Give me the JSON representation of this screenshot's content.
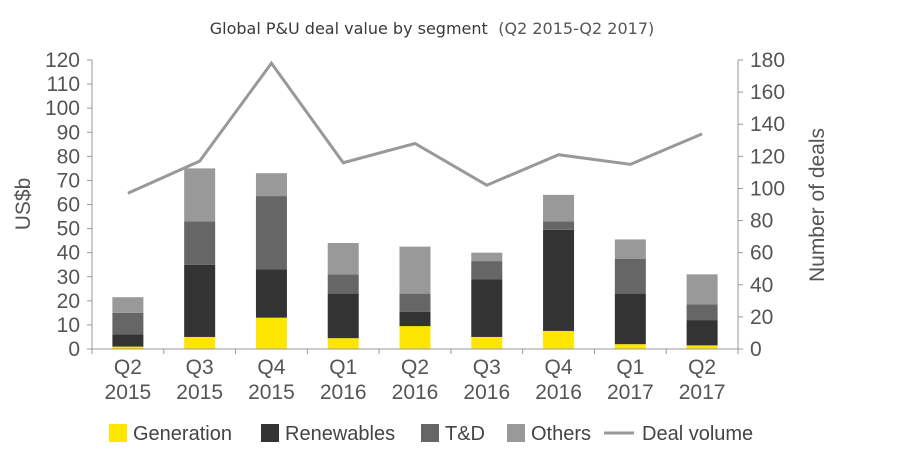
{
  "chart_data": {
    "type": "bar",
    "stacked": true,
    "title": "Global P&U deal value by segment",
    "subtitle": "(Q2 2015-Q2 2017)",
    "categories": [
      [
        "Q2",
        "2015"
      ],
      [
        "Q3",
        "2015"
      ],
      [
        "Q4",
        "2015"
      ],
      [
        "Q1",
        "2016"
      ],
      [
        "Q2",
        "2016"
      ],
      [
        "Q3",
        "2016"
      ],
      [
        "Q4",
        "2016"
      ],
      [
        "Q1",
        "2017"
      ],
      [
        "Q2",
        "2017"
      ]
    ],
    "ylabel": "US$b",
    "ylim": [
      0,
      120
    ],
    "yticks": [
      "0",
      "10",
      "20",
      "30",
      "40",
      "50",
      "60",
      "70",
      "80",
      "90",
      "100",
      "110",
      "120"
    ],
    "y2label": "Number of deals",
    "y2lim": [
      0,
      180
    ],
    "y2ticks": [
      "0",
      "20",
      "40",
      "60",
      "80",
      "100",
      "120",
      "140",
      "160",
      "180"
    ],
    "grid": false,
    "legend_position": "bottom",
    "series": [
      {
        "name": "Generation",
        "color": "#ffe600",
        "values": [
          1,
          5,
          13,
          4.5,
          9.5,
          5,
          7.5,
          2,
          1.5
        ]
      },
      {
        "name": "Renewables",
        "color": "#333333",
        "values": [
          5,
          30,
          20,
          18.5,
          6,
          24,
          42,
          21,
          10.5
        ]
      },
      {
        "name": "T&D",
        "color": "#666666",
        "values": [
          9,
          18,
          30.5,
          8,
          7.5,
          7.5,
          3.5,
          14.5,
          6.5
        ]
      },
      {
        "name": "Others",
        "color": "#999999",
        "values": [
          6.5,
          22,
          9.5,
          13,
          19.5,
          3.5,
          11,
          8,
          12.5
        ]
      }
    ],
    "line_series": {
      "name": "Deal volume",
      "color": "#999999",
      "axis": "right",
      "values": [
        97,
        117,
        178,
        116,
        128,
        102,
        121,
        115,
        134
      ]
    }
  }
}
